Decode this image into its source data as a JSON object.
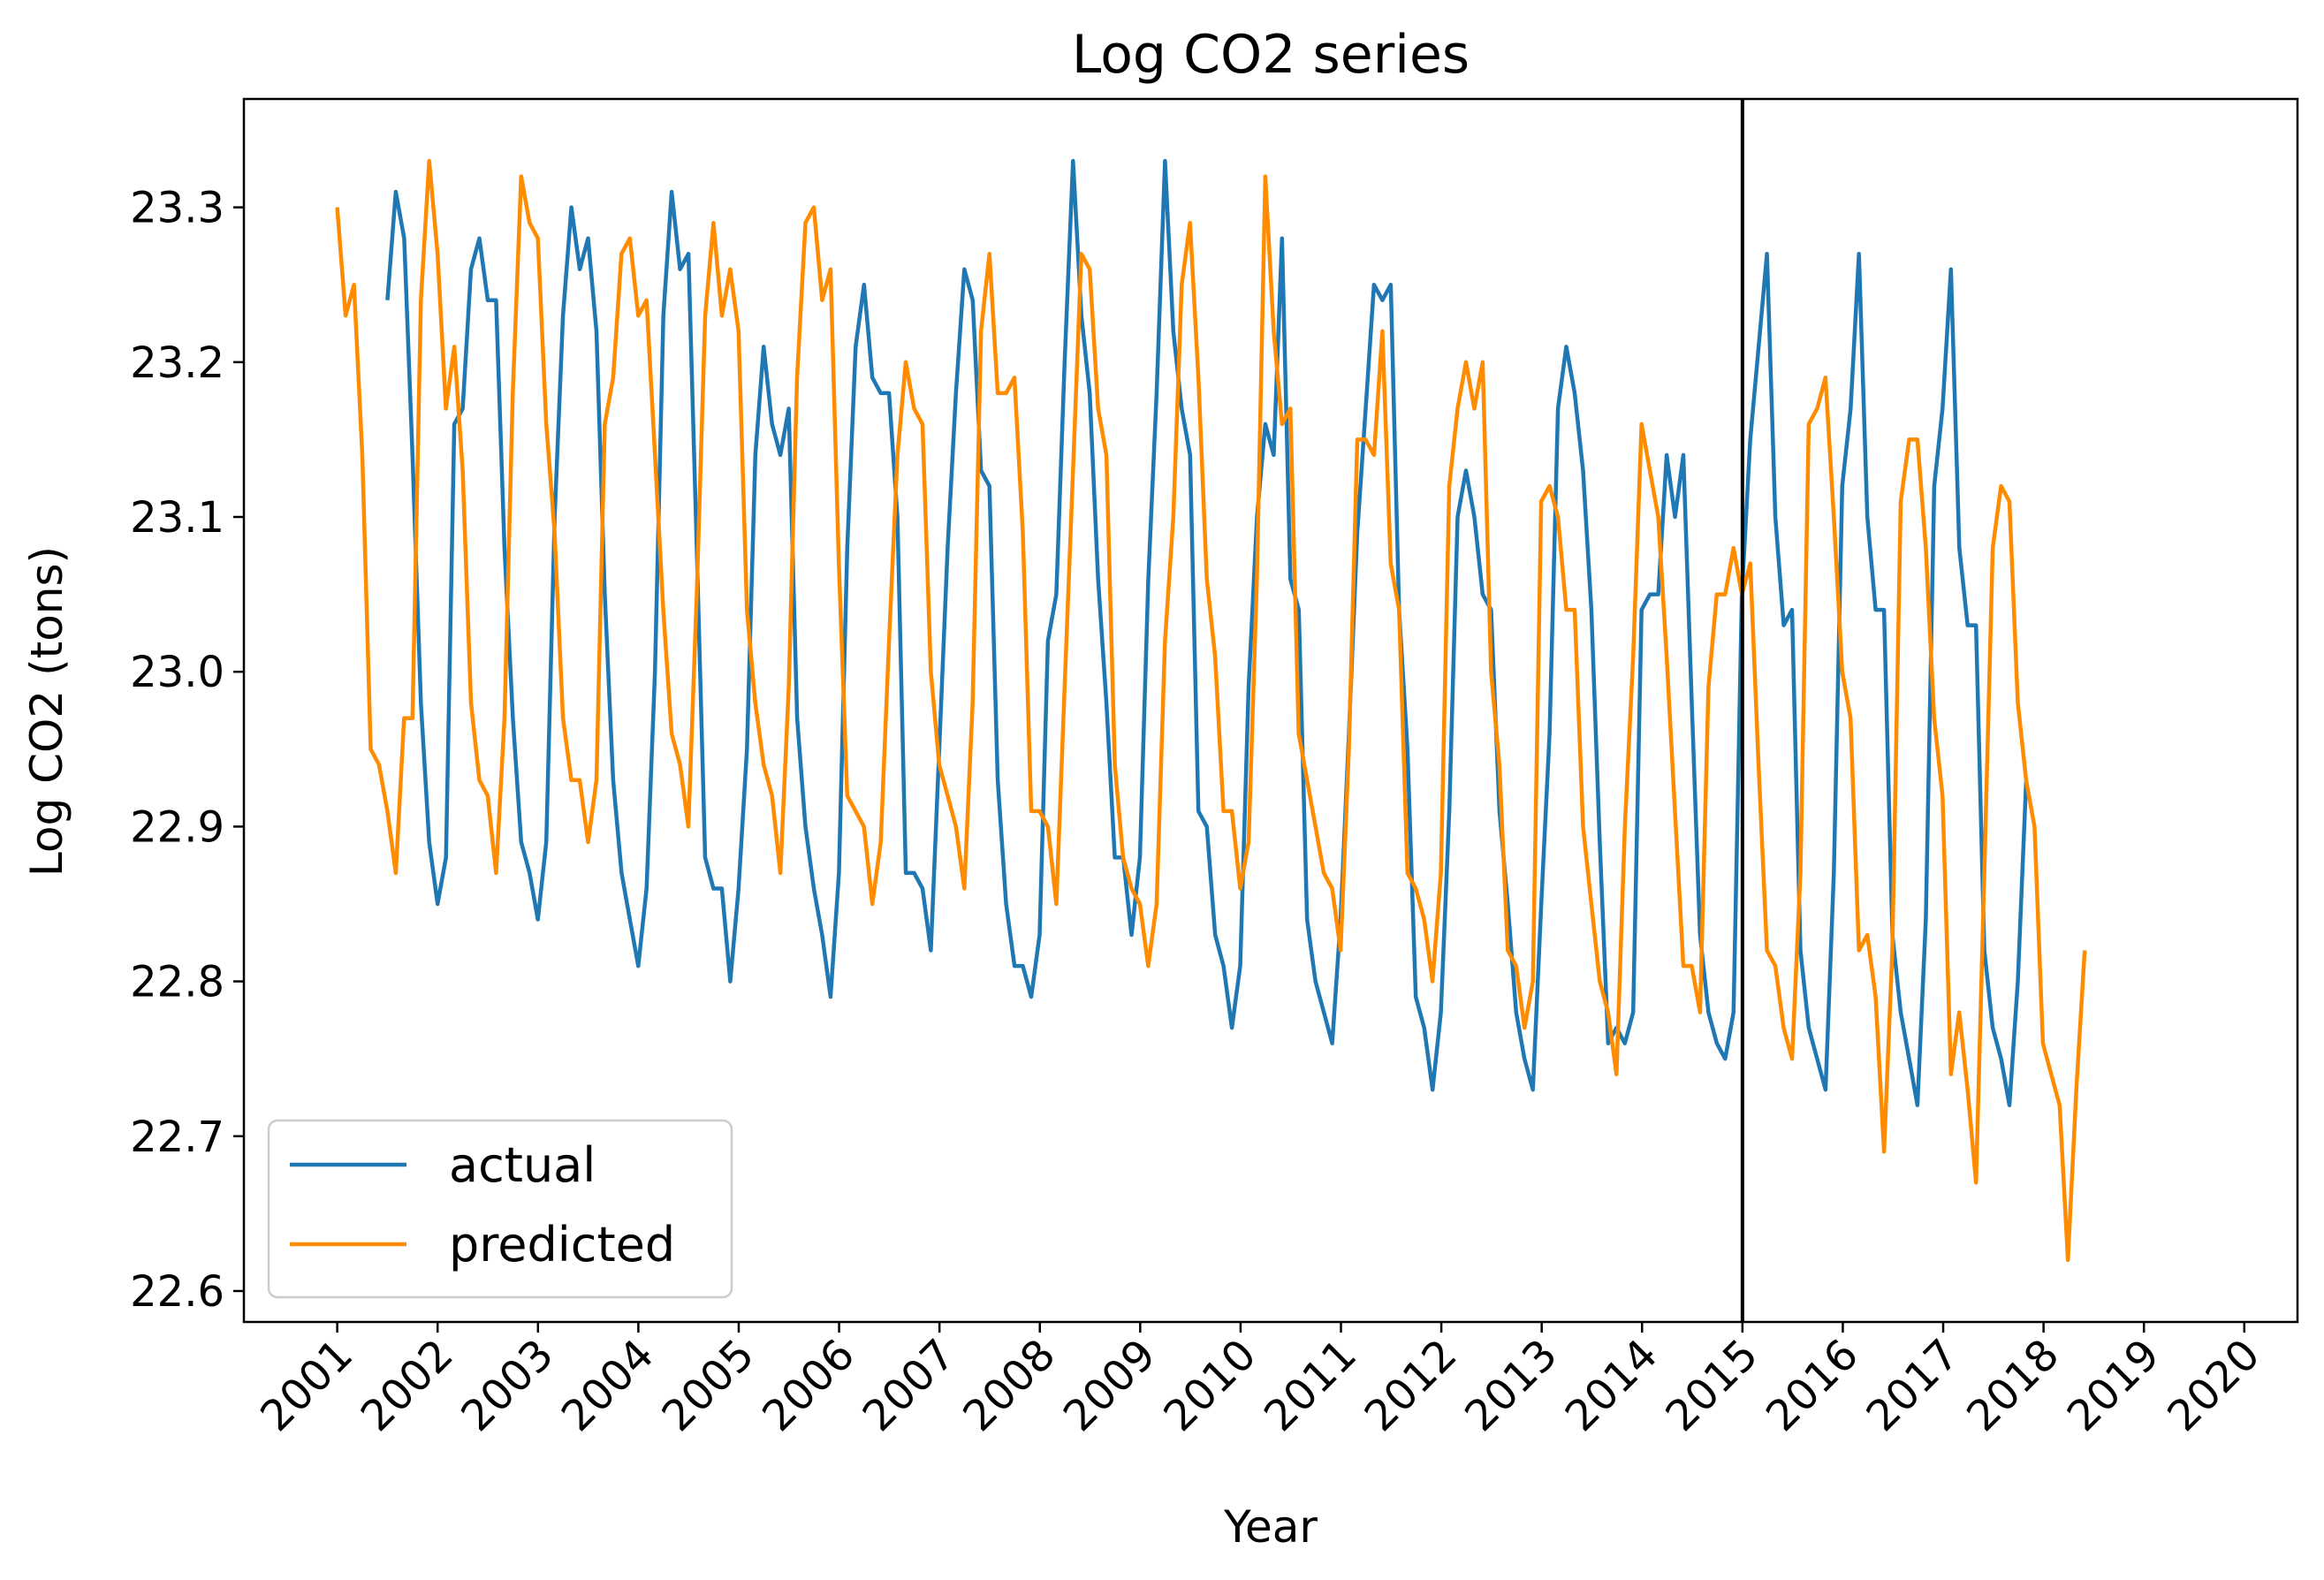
{
  "chart_data": {
    "type": "line",
    "title": "Log CO2 series",
    "xlabel": "Year",
    "ylabel": "Log CO2 (tons)",
    "xlim": [
      2000.07,
      2020.53
    ],
    "ylim": [
      22.58,
      23.37
    ],
    "x_ticks": [
      "2001",
      "2002",
      "2003",
      "2004",
      "2005",
      "2006",
      "2007",
      "2008",
      "2009",
      "2010",
      "2011",
      "2012",
      "2013",
      "2014",
      "2015",
      "2016",
      "2017",
      "2018",
      "2019",
      "2020"
    ],
    "y_ticks": [
      "22.6",
      "22.7",
      "22.8",
      "22.9",
      "23.0",
      "23.1",
      "23.2",
      "23.3"
    ],
    "grid": false,
    "legend_position": "lower-left",
    "vertical_line": {
      "x": 2015,
      "color": "#000000"
    },
    "series": [
      {
        "name": "actual",
        "color": "#1f77b4",
        "x_start": 2001.5,
        "x_step": 0.0833,
        "values": [
          23.24,
          23.31,
          23.28,
          23.14,
          22.98,
          22.89,
          22.85,
          22.88,
          23.16,
          23.17,
          23.26,
          23.28,
          23.24,
          23.24,
          23.08,
          22.97,
          22.89,
          22.87,
          22.84,
          22.89,
          23.1,
          23.23,
          23.3,
          23.26,
          23.28,
          23.22,
          23.05,
          22.93,
          22.87,
          22.84,
          22.81,
          22.86,
          23.0,
          23.23,
          23.31,
          23.26,
          23.27,
          23.08,
          22.88,
          22.86,
          22.86,
          22.8,
          22.86,
          22.95,
          23.14,
          23.21,
          23.16,
          23.14,
          23.17,
          22.97,
          22.9,
          22.86,
          22.83,
          22.79,
          22.87,
          23.08,
          23.21,
          23.25,
          23.19,
          23.18,
          23.18,
          23.1,
          22.87,
          22.87,
          22.86,
          22.82,
          22.95,
          23.08,
          23.18,
          23.26,
          23.24,
          23.13,
          23.12,
          22.93,
          22.85,
          22.81,
          22.81,
          22.79,
          22.83,
          23.02,
          23.05,
          23.2,
          23.33,
          23.23,
          23.18,
          23.06,
          22.98,
          22.88,
          22.88,
          22.83,
          22.88,
          23.06,
          23.18,
          23.33,
          23.22,
          23.17,
          23.14,
          22.91,
          22.9,
          22.83,
          22.81,
          22.77,
          22.81,
          22.99,
          23.1,
          23.16,
          23.14,
          23.28,
          23.06,
          23.04,
          22.84,
          22.8,
          22.78,
          22.76,
          22.84,
          22.96,
          23.09,
          23.17,
          23.25,
          23.24,
          23.25,
          23.04,
          22.95,
          22.79,
          22.77,
          22.73,
          22.78,
          22.91,
          23.1,
          23.13,
          23.1,
          23.05,
          23.04,
          22.91,
          22.85,
          22.78,
          22.75,
          22.73,
          22.85,
          22.96,
          23.17,
          23.21,
          23.18,
          23.13,
          23.04,
          22.89,
          22.76,
          22.77,
          22.76,
          22.78,
          23.04,
          23.05,
          23.05,
          23.14,
          23.1,
          23.14,
          22.98,
          22.83,
          22.78,
          22.76,
          22.75,
          22.78,
          23.05,
          23.15,
          23.21,
          23.27,
          23.1,
          23.03,
          23.04,
          22.82,
          22.77,
          22.75,
          22.73,
          22.87,
          23.12,
          23.17,
          23.27,
          23.1,
          23.04,
          23.04,
          22.83,
          22.78,
          22.75,
          22.72,
          22.84,
          23.12,
          23.17,
          23.26,
          23.08,
          23.03,
          23.03,
          22.82,
          22.77,
          22.75,
          22.72,
          22.8,
          22.93
        ]
      },
      {
        "name": "predicted",
        "color": "#ff8c00",
        "x_start": 2001.0,
        "x_step": 0.0833,
        "values": [
          23.3,
          23.23,
          23.25,
          23.14,
          22.95,
          22.94,
          22.91,
          22.87,
          22.97,
          22.97,
          23.24,
          23.33,
          23.27,
          23.17,
          23.21,
          23.13,
          22.98,
          22.93,
          22.92,
          22.87,
          22.97,
          23.18,
          23.32,
          23.29,
          23.28,
          23.16,
          23.09,
          22.97,
          22.93,
          22.93,
          22.89,
          22.93,
          23.16,
          23.19,
          23.27,
          23.28,
          23.23,
          23.24,
          23.14,
          23.04,
          22.96,
          22.94,
          22.9,
          23.05,
          23.23,
          23.29,
          23.23,
          23.26,
          23.22,
          23.04,
          22.98,
          22.94,
          22.92,
          22.87,
          22.99,
          23.19,
          23.29,
          23.3,
          23.24,
          23.26,
          23.07,
          22.92,
          22.91,
          22.9,
          22.85,
          22.89,
          23.02,
          23.14,
          23.2,
          23.17,
          23.16,
          23.0,
          22.94,
          22.92,
          22.9,
          22.86,
          22.98,
          23.22,
          23.27,
          23.18,
          23.18,
          23.19,
          23.09,
          22.91,
          22.91,
          22.9,
          22.85,
          22.99,
          23.13,
          23.27,
          23.26,
          23.17,
          23.14,
          22.94,
          22.88,
          22.86,
          22.85,
          22.81,
          22.85,
          23.02,
          23.1,
          23.25,
          23.29,
          23.19,
          23.06,
          23.01,
          22.91,
          22.91,
          22.86,
          22.89,
          23.06,
          23.32,
          23.22,
          23.16,
          23.17,
          22.96,
          22.93,
          22.9,
          22.87,
          22.86,
          22.82,
          22.95,
          23.15,
          23.15,
          23.14,
          23.22,
          23.07,
          23.04,
          22.87,
          22.86,
          22.84,
          22.8,
          22.87,
          23.12,
          23.17,
          23.2,
          23.17,
          23.2,
          23.0,
          22.94,
          22.82,
          22.81,
          22.77,
          22.8,
          23.11,
          23.12,
          23.1,
          23.04,
          23.04,
          22.9,
          22.85,
          22.8,
          22.78,
          22.74,
          22.9,
          23.01,
          23.16,
          23.13,
          23.1,
          23.01,
          22.91,
          22.81,
          22.81,
          22.78,
          22.99,
          23.05,
          23.05,
          23.08,
          23.05,
          23.07,
          22.94,
          22.82,
          22.81,
          22.77,
          22.75,
          22.87,
          23.16,
          23.17,
          23.19,
          23.1,
          23.0,
          22.97,
          22.82,
          22.83,
          22.79,
          22.69,
          22.82,
          23.11,
          23.15,
          23.15,
          23.08,
          22.97,
          22.92,
          22.74,
          22.78,
          22.73,
          22.67,
          22.87,
          23.08,
          23.12,
          23.11,
          22.98,
          22.93,
          22.9,
          22.76,
          22.74,
          22.72,
          22.62,
          22.73,
          22.82
        ]
      }
    ]
  }
}
